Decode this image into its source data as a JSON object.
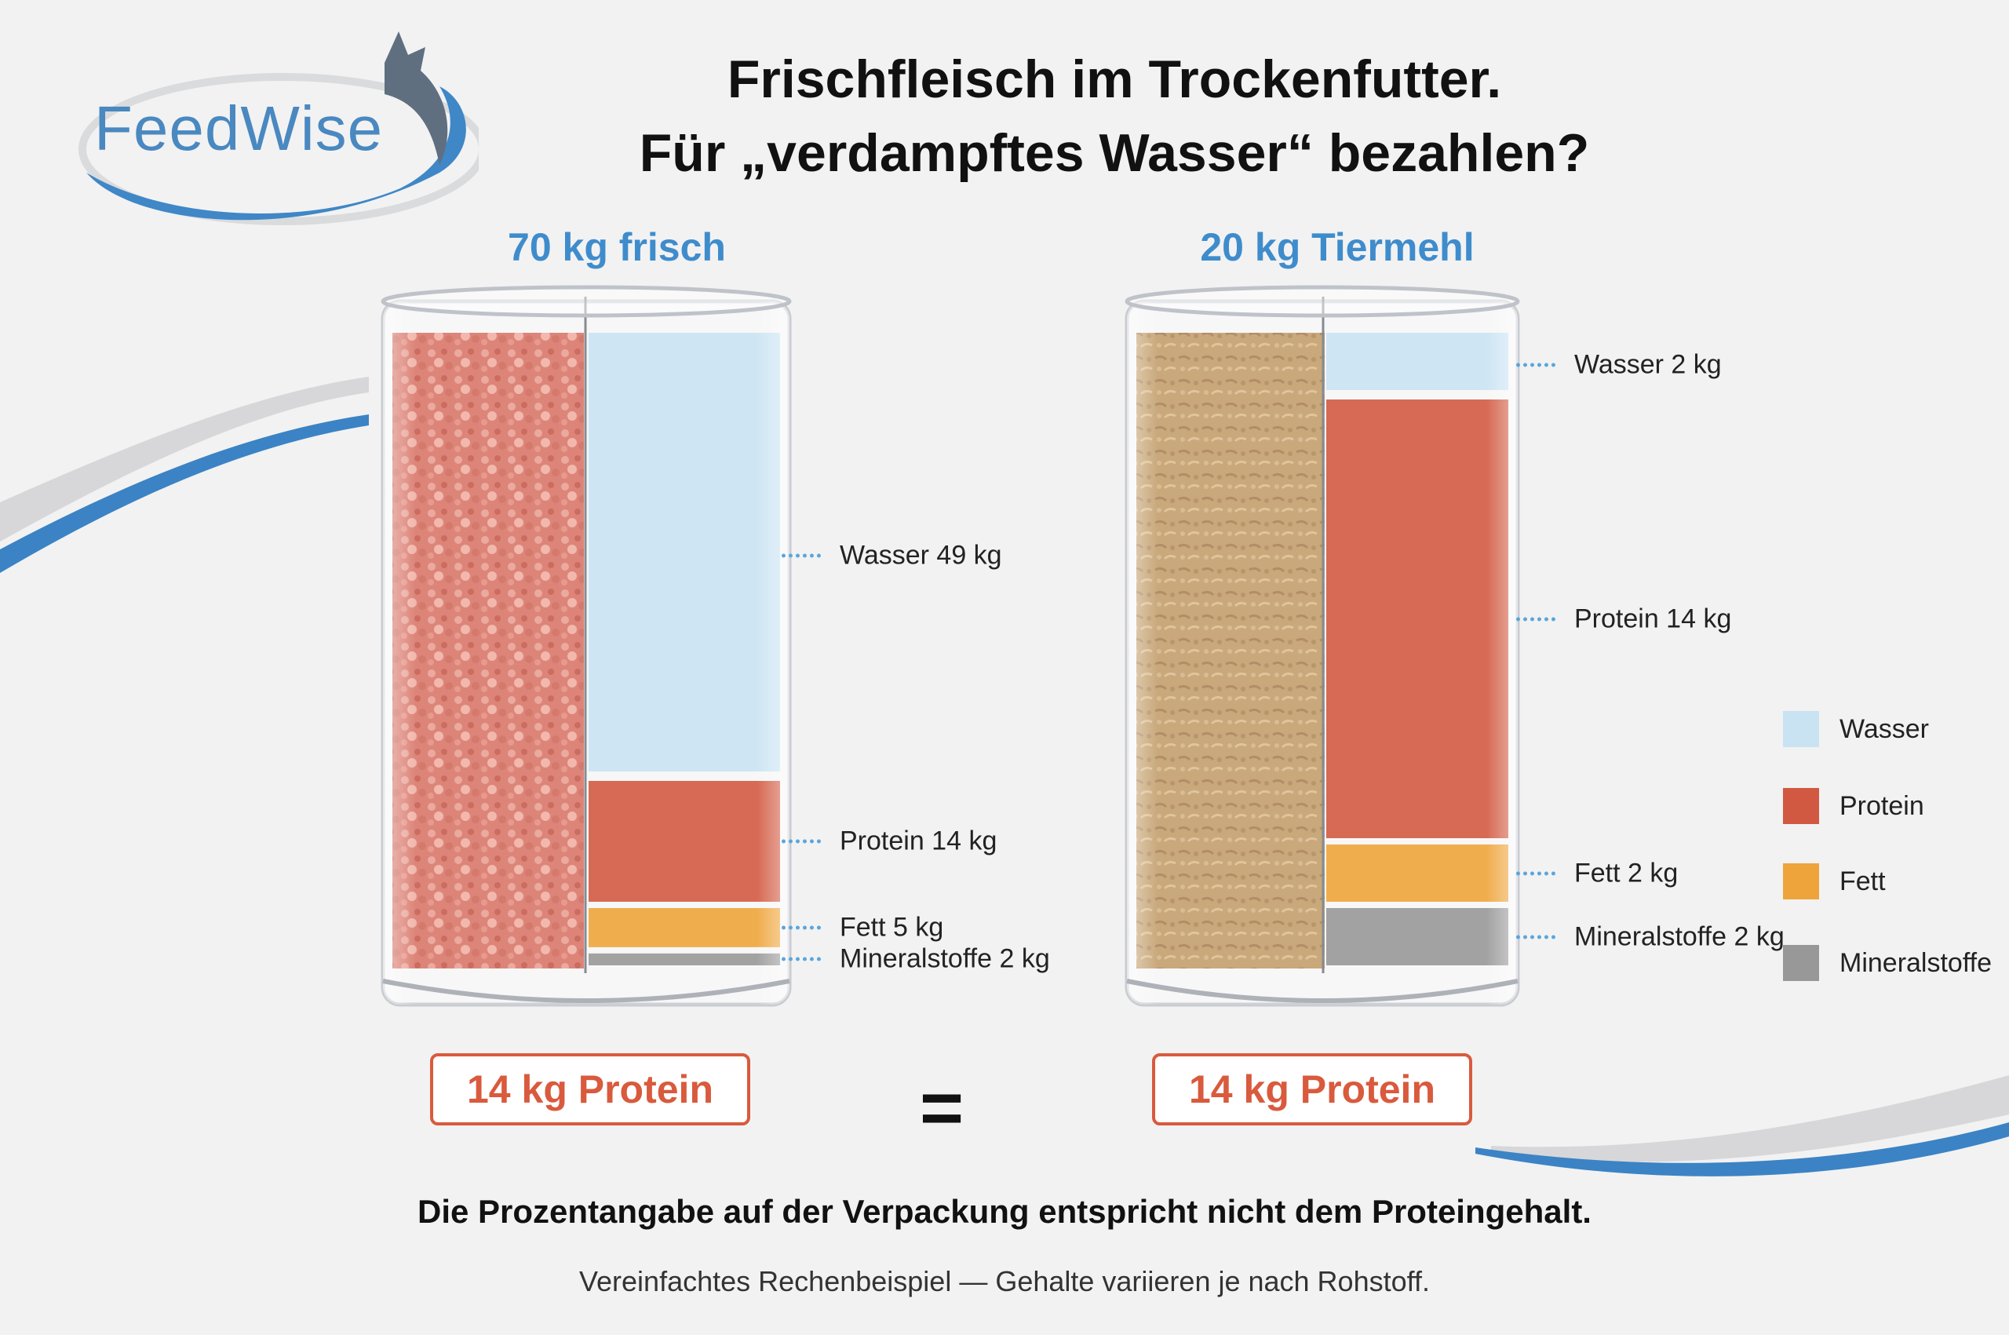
{
  "brand": {
    "name": "FeedWise"
  },
  "title": {
    "line1": "Frischfleisch im Trockenfutter.",
    "line2": "Für „verdampftes Wasser“ bezahlen?"
  },
  "colors": {
    "accent_blue": "#3f8ccc",
    "Wasser": "#c9e3f2",
    "Protein": "#d25941",
    "Fett": "#eea43a",
    "Mineralstoffe": "#989898",
    "fresh_meat": "#d9776a",
    "meal": "#c39e6c"
  },
  "chart_data": [
    {
      "type": "bar",
      "stacked": true,
      "title": "70 kg frisch",
      "total": 70,
      "unit": "kg",
      "series": [
        {
          "name": "Wasser",
          "value": 49,
          "label": "Wasser 49 kg"
        },
        {
          "name": "Protein",
          "value": 14,
          "label": "Protein 14 kg"
        },
        {
          "name": "Fett",
          "value": 5,
          "label": "Fett 5 kg"
        },
        {
          "name": "Mineralstoffe",
          "value": 2,
          "label": "Mineralstoffe 2 kg"
        }
      ],
      "summary": "14 kg Protein"
    },
    {
      "type": "bar",
      "stacked": true,
      "title": "20 kg Tiermehl",
      "total": 20,
      "unit": "kg",
      "series": [
        {
          "name": "Wasser",
          "value": 2,
          "label": "Wasser 2 kg"
        },
        {
          "name": "Protein",
          "value": 14,
          "label": "Protein 14 kg"
        },
        {
          "name": "Fett",
          "value": 2,
          "label": "Fett 2 kg"
        },
        {
          "name": "Mineralstoffe",
          "value": 2,
          "label": "Mineralstoffe 2 kg"
        }
      ],
      "summary": "14 kg Protein"
    }
  ],
  "legend": {
    "items": [
      "Wasser",
      "Protein",
      "Fett",
      "Mineralstoffe"
    ],
    "placement": "right"
  },
  "equals_sign": "=",
  "footer": {
    "statement": "Die Prozentangabe auf der Verpackung entspricht nicht dem Proteingehalt.",
    "note": "Vereinfachtes Rechenbeispiel — Gehalte variieren je nach Rohstoff."
  }
}
